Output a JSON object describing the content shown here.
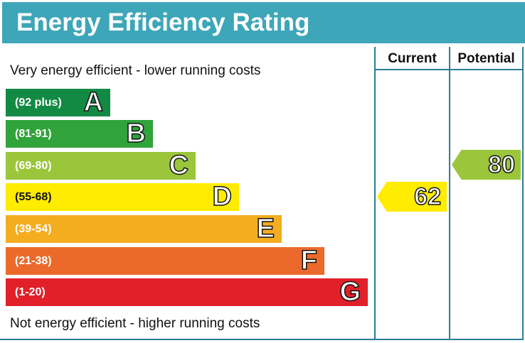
{
  "title": "Energy Efficiency Rating",
  "columns": {
    "current": "Current",
    "potential": "Potential"
  },
  "top_note": "Very energy efficient - lower running costs",
  "bottom_note": "Not energy efficient - higher running costs",
  "chart_data": {
    "type": "bar",
    "bands": [
      {
        "letter": "A",
        "range": "(92 plus)",
        "color": "#138a44"
      },
      {
        "letter": "B",
        "range": "(81-91)",
        "color": "#30a33a"
      },
      {
        "letter": "C",
        "range": "(69-80)",
        "color": "#9bc63c"
      },
      {
        "letter": "D",
        "range": "(55-68)",
        "color": "#ffec00"
      },
      {
        "letter": "E",
        "range": "(39-54)",
        "color": "#f4ad1f"
      },
      {
        "letter": "F",
        "range": "(21-38)",
        "color": "#eb6a2b"
      },
      {
        "letter": "G",
        "range": "(1-20)",
        "color": "#e1202a"
      }
    ],
    "current": {
      "value": "62",
      "band": "D",
      "color": "#ffec00"
    },
    "potential": {
      "value": "80",
      "band": "C",
      "color": "#9bc63c"
    }
  }
}
